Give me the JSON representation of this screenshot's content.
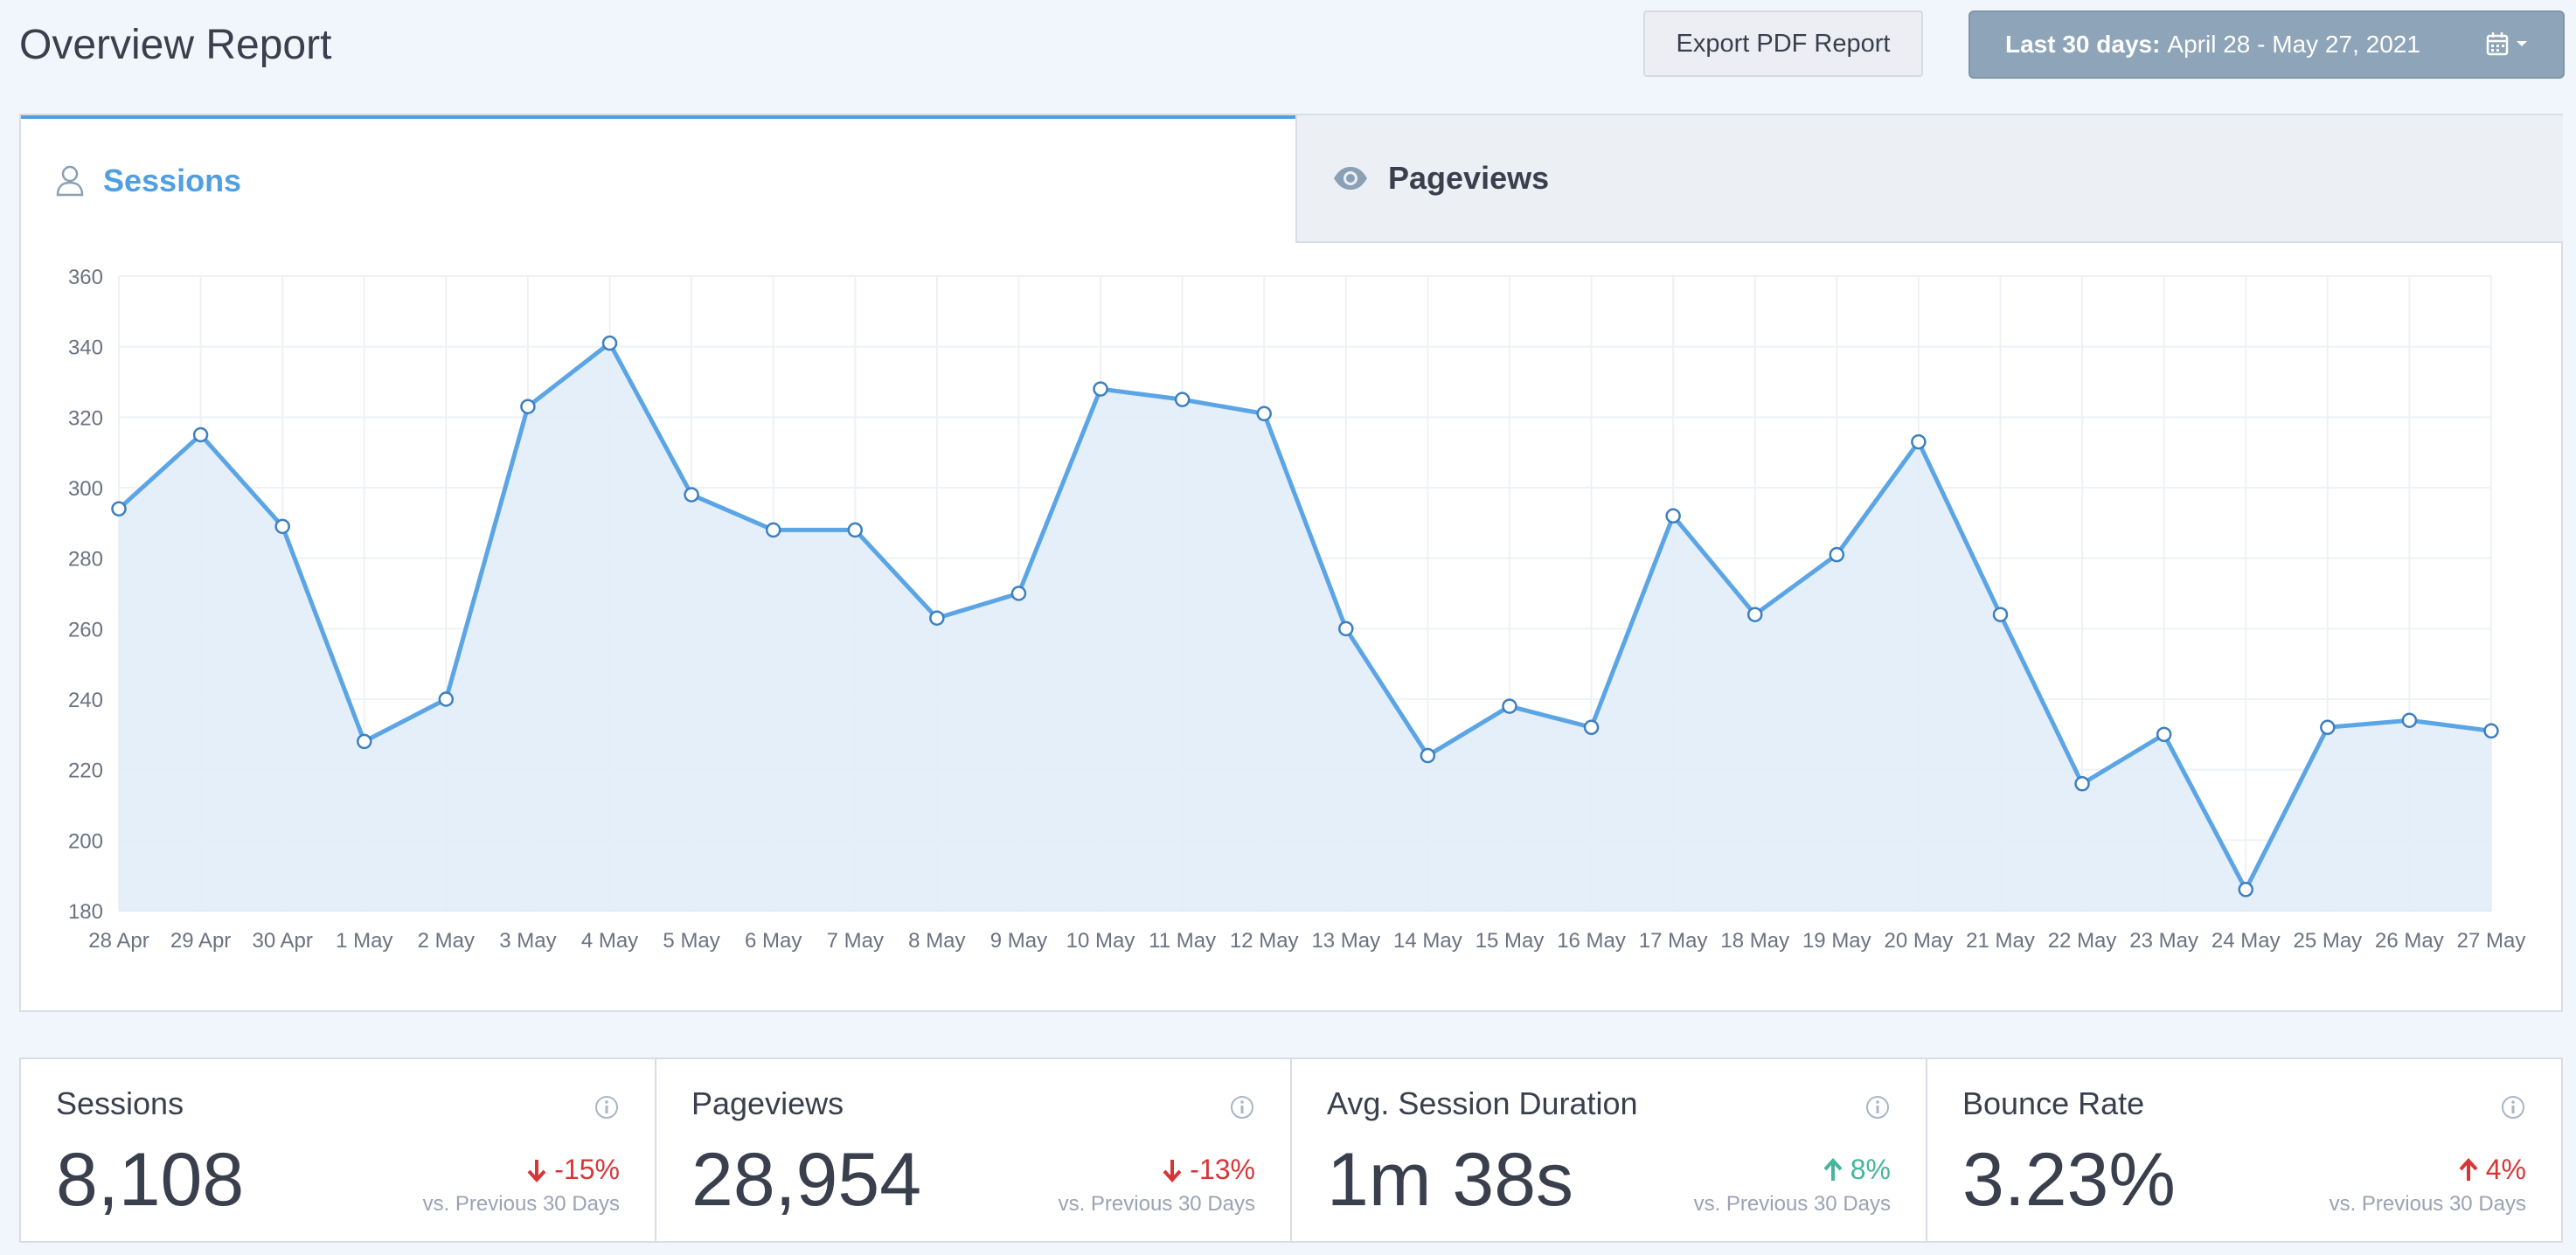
{
  "header": {
    "title": "Overview Report",
    "export_label": "Export PDF Report",
    "date_prefix": "Last 30 days:",
    "date_range": "April 28 - May 27, 2021"
  },
  "tabs": {
    "sessions": "Sessions",
    "pageviews": "Pageviews"
  },
  "chart_data": {
    "type": "area",
    "title": "",
    "xlabel": "",
    "ylabel": "",
    "ylim": [
      180,
      360
    ],
    "yticks": [
      180,
      200,
      220,
      240,
      260,
      280,
      300,
      320,
      340,
      360
    ],
    "categories": [
      "28 Apr",
      "29 Apr",
      "30 Apr",
      "1 May",
      "2 May",
      "3 May",
      "4 May",
      "5 May",
      "6 May",
      "7 May",
      "8 May",
      "9 May",
      "10 May",
      "11 May",
      "12 May",
      "13 May",
      "14 May",
      "15 May",
      "16 May",
      "17 May",
      "18 May",
      "19 May",
      "20 May",
      "21 May",
      "22 May",
      "23 May",
      "24 May",
      "25 May",
      "26 May",
      "27 May"
    ],
    "series": [
      {
        "name": "Sessions",
        "values": [
          294,
          315,
          289,
          228,
          240,
          323,
          341,
          298,
          288,
          288,
          263,
          270,
          328,
          325,
          321,
          260,
          224,
          238,
          232,
          292,
          264,
          281,
          313,
          264,
          216,
          230,
          186,
          232,
          234,
          231
        ]
      }
    ],
    "colors": {
      "line": "#5ba5e6",
      "fill": "#e1edf8",
      "grid": "#eef1f5",
      "axis_text": "#6b7280"
    }
  },
  "stats": [
    {
      "label": "Sessions",
      "value": "8,108",
      "change": "-15%",
      "direction": "down",
      "compare": "vs. Previous 30 Days"
    },
    {
      "label": "Pageviews",
      "value": "28,954",
      "change": "-13%",
      "direction": "down",
      "compare": "vs. Previous 30 Days"
    },
    {
      "label": "Avg. Session Duration",
      "value": "1m 38s",
      "change": "8%",
      "direction": "up-good",
      "compare": "vs. Previous 30 Days"
    },
    {
      "label": "Bounce Rate",
      "value": "3.23%",
      "change": "4%",
      "direction": "up-bad",
      "compare": "vs. Previous 30 Days"
    }
  ]
}
